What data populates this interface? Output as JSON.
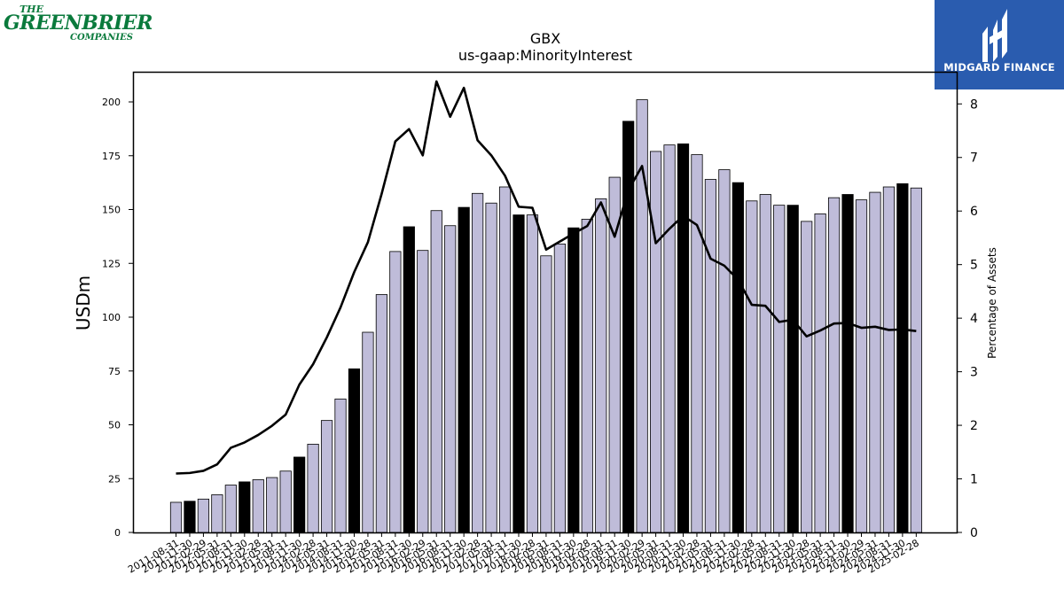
{
  "logos": {
    "left": {
      "line1": "THE",
      "line2": "GREENBRIER",
      "line3": "COMPANIES"
    },
    "right": {
      "name": "MIDGARD FINANCE"
    }
  },
  "chart_data": {
    "type": "bar",
    "title": "GBX",
    "subtitle": "us-gaap:MinorityInterest",
    "ylabel": "USDm",
    "y2label": "Percentage of Assets",
    "ylim": [
      0,
      214
    ],
    "y2lim": [
      0,
      8.6
    ],
    "yticks": [
      0,
      25,
      50,
      75,
      100,
      125,
      150,
      175,
      200
    ],
    "y2ticks": [
      0,
      1,
      2,
      3,
      4,
      5,
      6,
      7,
      8
    ],
    "colors": {
      "bar": "#bfbcd9",
      "bar_fy": "#000000",
      "line": "#000000"
    },
    "categories": [
      "2011-08-31",
      "2011-11-30",
      "2012-02-29",
      "2012-05-31",
      "2012-08-31",
      "2012-11-30",
      "2013-02-28",
      "2013-05-31",
      "2013-08-31",
      "2013-11-30",
      "2014-02-28",
      "2014-05-31",
      "2014-08-31",
      "2014-11-30",
      "2015-02-28",
      "2015-05-31",
      "2015-08-31",
      "2015-11-30",
      "2016-02-29",
      "2016-05-31",
      "2016-08-31",
      "2016-11-30",
      "2017-02-28",
      "2017-05-31",
      "2017-08-31",
      "2017-11-30",
      "2018-02-28",
      "2018-05-31",
      "2018-08-31",
      "2018-11-30",
      "2019-02-28",
      "2019-05-31",
      "2019-08-31",
      "2019-11-30",
      "2020-02-29",
      "2020-05-31",
      "2020-08-31",
      "2020-11-30",
      "2021-02-28",
      "2021-05-31",
      "2021-08-31",
      "2021-11-30",
      "2022-02-28",
      "2022-05-31",
      "2022-08-31",
      "2022-11-30",
      "2023-02-28",
      "2023-05-31",
      "2023-08-31",
      "2023-11-30",
      "2024-02-29",
      "2024-05-31",
      "2024-08-31",
      "2024-11-30",
      "2025-02-28"
    ],
    "series": [
      {
        "values": [
          14,
          14.5,
          15.5,
          17.5,
          22,
          23.5,
          24.5,
          25.5,
          28.5,
          35,
          41,
          52,
          62,
          76,
          93,
          110.5,
          130.5,
          142,
          131,
          149.5,
          142.5,
          151,
          157.5,
          153,
          160.5,
          147.5,
          147.5,
          128.5,
          134,
          141.5,
          145.5,
          155,
          165,
          191,
          201,
          177,
          180,
          180.5,
          175.5,
          164,
          168.5,
          162.5,
          154,
          157,
          152,
          152,
          144.5,
          148,
          155.5,
          157,
          154.5,
          158,
          160.5,
          162,
          160
        ],
        "fiscal_year_end": [
          false,
          true,
          false,
          false,
          false,
          true,
          false,
          false,
          false,
          true,
          false,
          false,
          false,
          true,
          false,
          false,
          false,
          true,
          false,
          false,
          false,
          true,
          false,
          false,
          false,
          true,
          false,
          false,
          false,
          true,
          false,
          false,
          false,
          true,
          false,
          false,
          false,
          true,
          false,
          false,
          false,
          true,
          false,
          false,
          false,
          true,
          false,
          false,
          false,
          true,
          false,
          false,
          false,
          true,
          false
        ]
      },
      {
        "values": [
          1.1,
          1.11,
          1.15,
          1.27,
          1.58,
          1.68,
          1.82,
          1.99,
          2.2,
          2.76,
          3.14,
          3.64,
          4.2,
          4.86,
          5.42,
          6.32,
          7.3,
          7.53,
          7.04,
          8.42,
          7.76,
          8.3,
          7.32,
          7.04,
          6.66,
          6.08,
          6.06,
          5.28,
          5.43,
          5.58,
          5.72,
          6.16,
          5.52,
          6.39,
          6.84,
          5.4,
          5.67,
          5.91,
          5.74,
          5.11,
          4.98,
          4.72,
          4.25,
          4.23,
          3.93,
          3.97,
          3.66,
          3.77,
          3.9,
          3.91,
          3.82,
          3.84,
          3.78,
          3.79,
          3.76
        ]
      }
    ]
  }
}
